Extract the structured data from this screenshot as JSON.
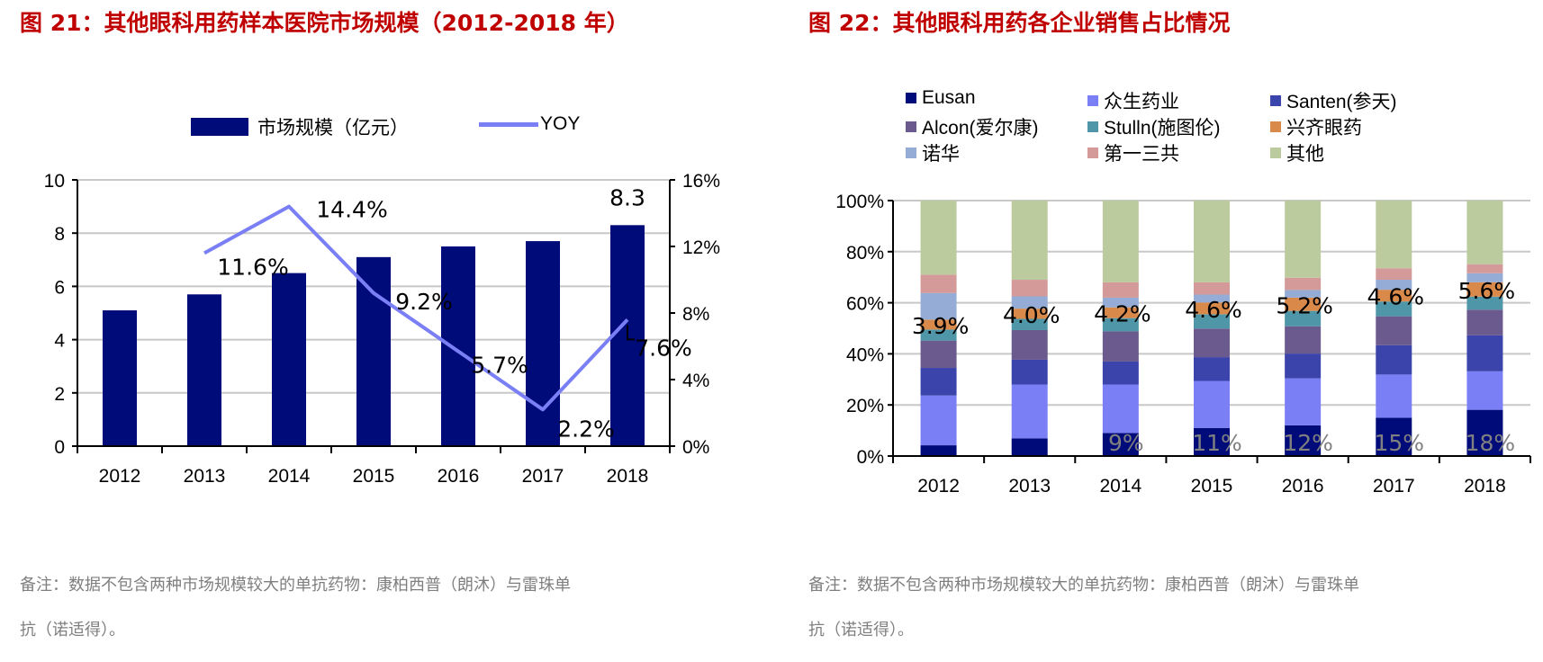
{
  "left": {
    "title": "图 21：其他眼科用药样本医院市场规模（2012-2018 年）",
    "note": [
      "备注：数据不包含两种市场规模较大的单抗药物：康柏西普（朗沐）与雷珠单",
      "抗（诺适得）。"
    ]
  },
  "right": {
    "title": "图 22：其他眼科用药各企业销售占比情况",
    "note": [
      "备注：数据不包含两种市场规模较大的单抗药物：康柏西普（朗沐）与雷珠单",
      "抗（诺适得）。"
    ]
  },
  "chart_data": [
    {
      "type": "bar",
      "categories": [
        "2012",
        "2013",
        "2014",
        "2015",
        "2016",
        "2017",
        "2018"
      ],
      "series": [
        {
          "name": "市场规模（亿元）",
          "type": "bar",
          "axis": "left",
          "color": "#000b7a",
          "values": [
            5.1,
            5.7,
            6.5,
            7.1,
            7.5,
            7.7,
            8.3
          ],
          "data_labels": [
            null,
            null,
            null,
            null,
            null,
            null,
            "8.3"
          ]
        },
        {
          "name": "YOY",
          "type": "line",
          "axis": "right",
          "color": "#7b7ff5",
          "values": [
            null,
            11.6,
            14.4,
            9.2,
            5.7,
            2.2,
            7.6
          ],
          "data_labels": [
            null,
            "11.6%",
            "14.4%",
            "9.2%",
            "5.7%",
            "2.2%",
            "7.6%"
          ]
        }
      ],
      "ylim": [
        0,
        10
      ],
      "yticks": [
        "0",
        "2",
        "4",
        "6",
        "8",
        "10"
      ],
      "y2lim": [
        0,
        16
      ],
      "y2ticks": [
        "0%",
        "4%",
        "8%",
        "12%",
        "16%"
      ],
      "grid": true,
      "legend": "top"
    },
    {
      "type": "bar",
      "stacked": true,
      "categories": [
        "2012",
        "2013",
        "2014",
        "2015",
        "2016",
        "2017",
        "2018"
      ],
      "series": [
        {
          "name": "Eusan",
          "color": "#000b7a",
          "values": [
            4.2,
            6.9,
            9,
            11,
            12,
            15,
            18
          ],
          "data_labels": [
            null,
            null,
            "9%",
            "11%",
            "12%",
            "15%",
            "18%"
          ]
        },
        {
          "name": "众生药业",
          "color": "#7b7ff5",
          "values": [
            19.5,
            21.1,
            19,
            18.4,
            18.4,
            16.9,
            15.0
          ]
        },
        {
          "name": "Santen(参天)",
          "color": "#3a44aa",
          "values": [
            10.8,
            9.7,
            9,
            9.3,
            9.7,
            11.5,
            14.0
          ]
        },
        {
          "name": "Alcon(爱尔康)",
          "color": "#6a5a8e",
          "values": [
            10.7,
            11.6,
            11.8,
            11.2,
            10.7,
            11.3,
            10.0
          ]
        },
        {
          "name": "Stulln(施图伦)",
          "color": "#4f97a8",
          "values": [
            4.3,
            4.4,
            5.2,
            5.6,
            6.0,
            5.8,
            5.1
          ]
        },
        {
          "name": "兴齐眼药",
          "color": "#d98a4a",
          "values": [
            3.9,
            4.0,
            4.2,
            4.6,
            5.2,
            4.6,
            5.6
          ],
          "data_labels": [
            "3.9%",
            "4.0%",
            "4.2%",
            "4.6%",
            "5.2%",
            "4.6%",
            "5.6%"
          ]
        },
        {
          "name": "诺华",
          "color": "#94acd6",
          "values": [
            10.4,
            4.8,
            3.8,
            3.1,
            3.0,
            3.9,
            3.5
          ]
        },
        {
          "name": "第一三共",
          "color": "#d49a9a",
          "values": [
            7.2,
            6.5,
            6.0,
            4.8,
            4.8,
            4.5,
            3.5
          ]
        },
        {
          "name": "其他",
          "color": "#bccb9e",
          "values": [
            29.0,
            31.0,
            32.0,
            32.0,
            30.2,
            26.5,
            24.8
          ]
        }
      ],
      "ylim": [
        0,
        100
      ],
      "yticks": [
        "0%",
        "20%",
        "40%",
        "60%",
        "80%",
        "100%"
      ],
      "grid": true,
      "legend": "top"
    }
  ]
}
